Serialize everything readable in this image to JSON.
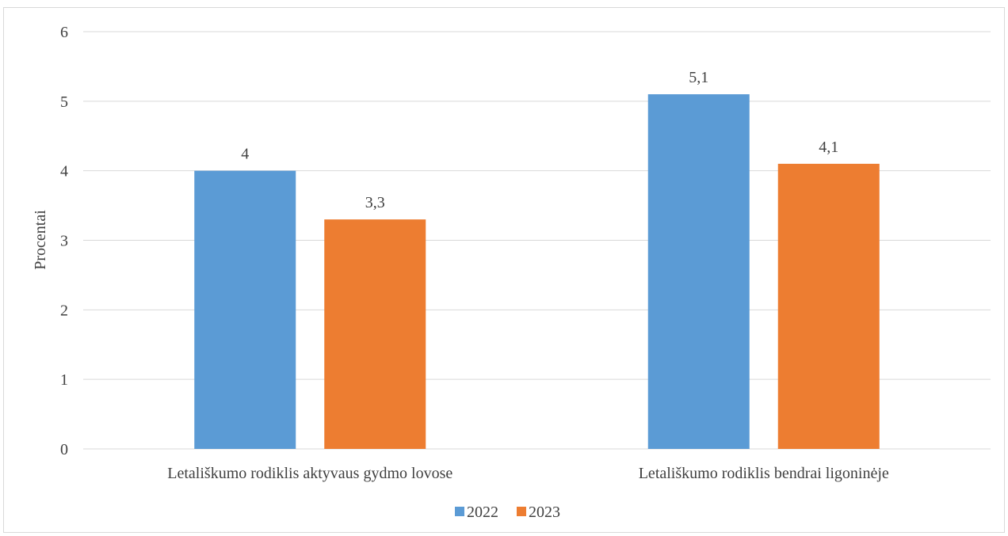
{
  "chart_data": {
    "type": "bar",
    "title": "",
    "xlabel": "",
    "ylabel": "Procentai",
    "ylim": [
      0,
      6
    ],
    "yticks": [
      0,
      1,
      2,
      3,
      4,
      5,
      6
    ],
    "grid": true,
    "legend_position": "bottom",
    "categories": [
      "Letališkumo rodiklis aktyvaus gydmo lovose",
      "Letališkumo rodiklis bendrai ligoninėje"
    ],
    "series": [
      {
        "name": "2022",
        "color": "#5b9bd5",
        "values": [
          4,
          5.1
        ],
        "labels": [
          "4",
          "5,1"
        ]
      },
      {
        "name": "2023",
        "color": "#ed7d31",
        "values": [
          3.3,
          4.1
        ],
        "labels": [
          "3,3",
          "4,1"
        ]
      }
    ]
  }
}
